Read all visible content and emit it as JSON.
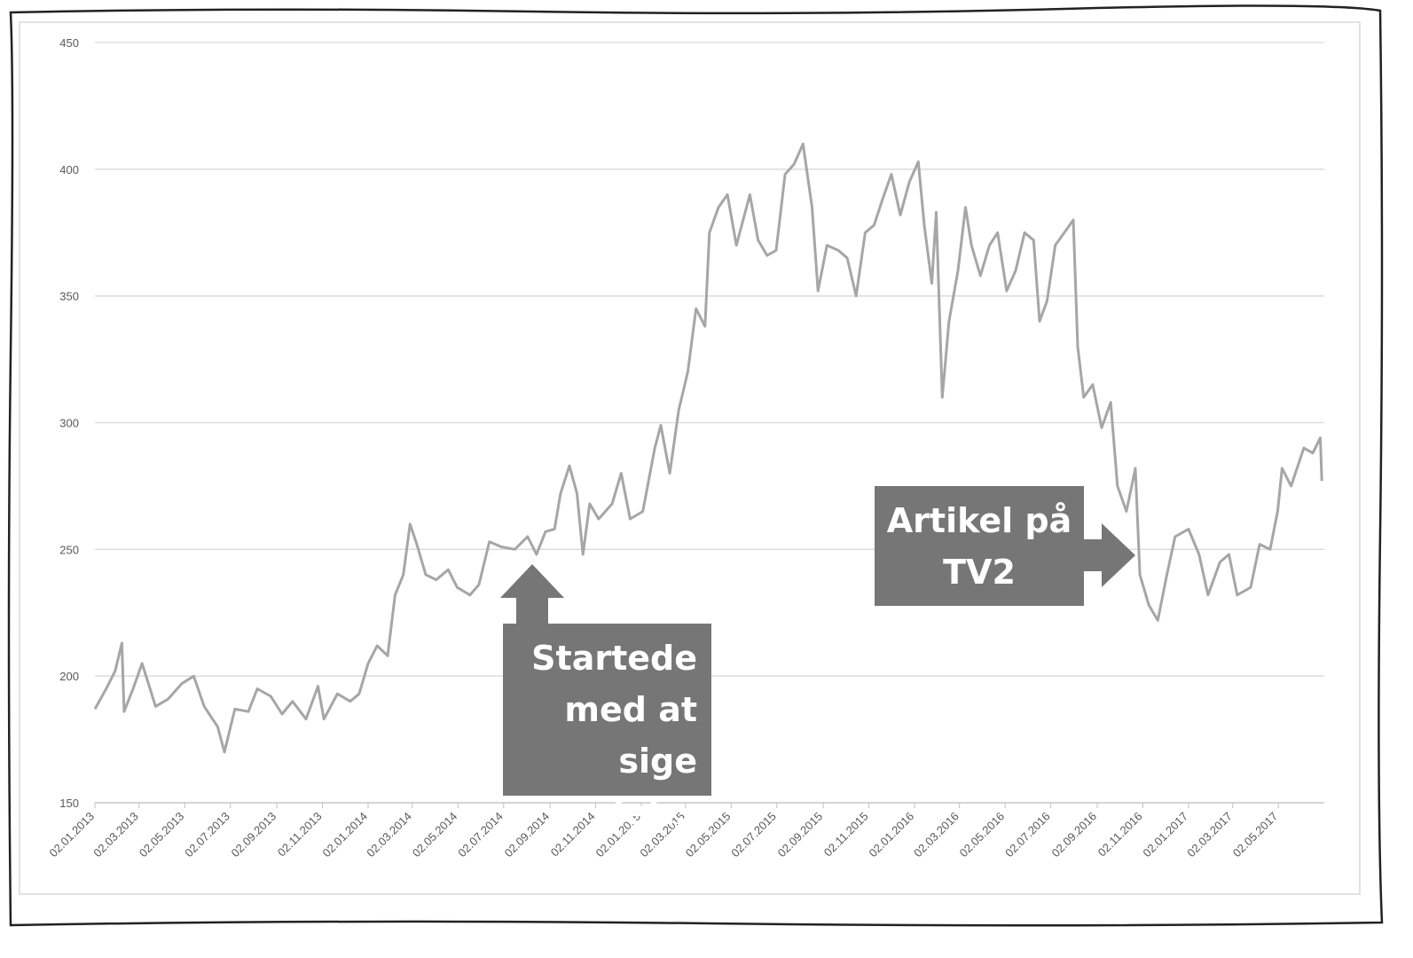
{
  "chart_data": {
    "type": "line",
    "x": [
      "02.01.2013",
      "17.01.2013",
      "29.01.2013",
      "07.02.2013",
      "10.02.2013",
      "22.02.2013",
      "06.03.2013",
      "24.03.2013",
      "10.04.2013",
      "28.04.2013",
      "14.05.2013",
      "28.05.2013",
      "15.06.2013",
      "24.06.2013",
      "08.07.2013",
      "26.07.2013",
      "07.08.2013",
      "25.08.2013",
      "09.09.2013",
      "23.09.2013",
      "11.10.2013",
      "27.10.2013",
      "04.11.2013",
      "22.11.2013",
      "09.12.2013",
      "21.12.2013",
      "02.01.2014",
      "14.01.2014",
      "28.01.2014",
      "07.02.2014",
      "18.02.2014",
      "27.02.2014",
      "08.03.2014",
      "20.03.2014",
      "03.04.2014",
      "19.04.2014",
      "01.05.2014",
      "18.05.2014",
      "30.05.2014",
      "13.06.2014",
      "29.06.2014",
      "17.07.2014",
      "03.08.2014",
      "15.08.2014",
      "27.08.2014",
      "08.09.2014",
      "16.09.2014",
      "28.09.2014",
      "08.10.2014",
      "16.10.2014",
      "25.10.2014",
      "06.11.2014",
      "24.11.2014",
      "06.12.2014",
      "18.12.2014",
      "04.01.2015",
      "20.01.2015",
      "28.01.2015",
      "09.02.2015",
      "21.02.2015",
      "05.03.2015",
      "16.03.2015",
      "28.03.2015",
      "03.04.2015",
      "15.04.2015",
      "27.04.2015",
      "09.05.2015",
      "27.05.2015",
      "07.06.2015",
      "19.06.2015",
      "01.07.2015",
      "13.07.2015",
      "25.07.2015",
      "06.08.2015",
      "18.08.2015",
      "26.08.2015",
      "07.09.2015",
      "22.09.2015",
      "04.10.2015",
      "16.10.2015",
      "28.10.2015",
      "09.11.2015",
      "20.11.2015",
      "02.12.2015",
      "14.12.2015",
      "26.12.2015",
      "07.01.2016",
      "15.01.2016",
      "25.01.2016",
      "31.01.2016",
      "08.02.2016",
      "17.02.2016",
      "29.02.2016",
      "10.03.2016",
      "18.03.2016",
      "30.03.2016",
      "11.04.2016",
      "22.04.2016",
      "04.05.2016",
      "16.05.2016",
      "28.05.2016",
      "09.06.2016",
      "17.06.2016",
      "27.06.2016",
      "08.07.2016",
      "20.07.2016",
      "01.08.2016",
      "07.08.2016",
      "15.08.2016",
      "27.08.2016",
      "08.09.2016",
      "20.09.2016",
      "29.09.2016",
      "11.10.2016",
      "23.10.2016",
      "29.10.2016",
      "10.11.2016",
      "22.11.2016",
      "04.12.2016",
      "15.12.2016",
      "02.01.2017",
      "16.01.2017",
      "28.01.2017",
      "13.02.2017",
      "25.02.2017",
      "08.03.2017",
      "26.03.2017",
      "07.04.2017",
      "21.04.2017",
      "01.05.2017",
      "07.05.2017",
      "19.05.2017",
      "05.06.2017",
      "17.06.2017",
      "27.06.2017",
      "29.06.2017"
    ],
    "series": [
      {
        "color": "#a6a6a6",
        "values": [
          187,
          195,
          202,
          213,
          186,
          195,
          205,
          188,
          191,
          197,
          200,
          188,
          180,
          170,
          187,
          186,
          195,
          192,
          185,
          190,
          183,
          196,
          183,
          193,
          190,
          193,
          205,
          212,
          208,
          232,
          240,
          260,
          252,
          240,
          238,
          242,
          235,
          232,
          236,
          253,
          251,
          250,
          255,
          248,
          257,
          258,
          272,
          283,
          272,
          248,
          268,
          262,
          268,
          280,
          262,
          265,
          290,
          299,
          280,
          305,
          320,
          345,
          338,
          375,
          385,
          390,
          370,
          390,
          372,
          366,
          368,
          398,
          402,
          410,
          385,
          352,
          370,
          368,
          365,
          350,
          375,
          378,
          388,
          398,
          382,
          395,
          403,
          378,
          355,
          383,
          310,
          340,
          360,
          385,
          370,
          358,
          370,
          375,
          352,
          360,
          375,
          372,
          340,
          348,
          370,
          375,
          380,
          330,
          310,
          315,
          298,
          308,
          275,
          265,
          282,
          240,
          228,
          222,
          240,
          255,
          258,
          248,
          232,
          245,
          248,
          232,
          235,
          252,
          250,
          265,
          282,
          275,
          290,
          288,
          294,
          277
        ]
      }
    ],
    "xlim": [
      "02.01.2013",
      "30.06.2017"
    ],
    "xticks": [
      "02.01.2013",
      "02.03.2013",
      "02.05.2013",
      "02.07.2013",
      "02.09.2013",
      "02.11.2013",
      "02.01.2014",
      "02.03.2014",
      "02.05.2014",
      "02.07.2014",
      "02.09.2014",
      "02.11.2014",
      "02.01.2015",
      "02.03.2015",
      "02.05.2015",
      "02.07.2015",
      "02.09.2015",
      "02.11.2015",
      "02.01.2016",
      "02.03.2016",
      "02.05.2016",
      "02.07.2016",
      "02.09.2016",
      "02.11.2016",
      "02.01.2017",
      "02.03.2017",
      "02.05.2017"
    ],
    "ylim": [
      150,
      450
    ],
    "yticks": [
      150,
      200,
      250,
      300,
      350,
      400,
      450
    ],
    "grid": true,
    "annotations": [
      "Startede med at sige det…",
      "Artikel på TV2"
    ]
  }
}
